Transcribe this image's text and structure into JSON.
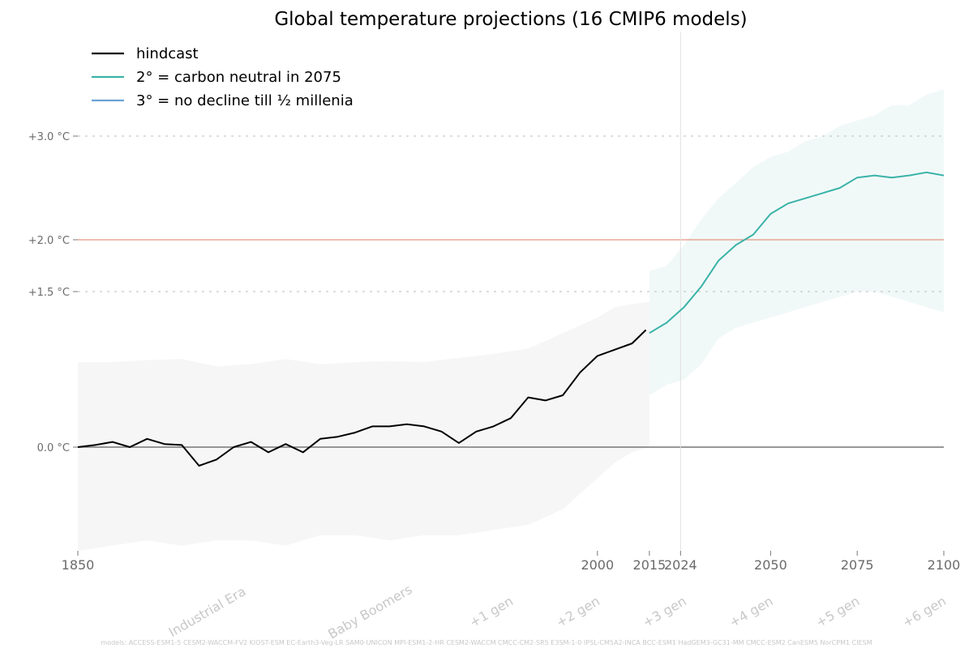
{
  "chart_data": {
    "type": "line",
    "title": "Global temperature projections (16 CMIP6 models)",
    "xlim": [
      1850,
      2100
    ],
    "ylim": [
      -1.0,
      4.0
    ],
    "y_ticks": [
      {
        "value": 0.0,
        "label": "0.0 °C"
      },
      {
        "value": 1.5,
        "label": "+1.5 °C"
      },
      {
        "value": 2.0,
        "label": "+2.0 °C"
      },
      {
        "value": 3.0,
        "label": "+3.0 °C"
      }
    ],
    "x_ticks": [
      {
        "value": 1850,
        "label": "1850"
      },
      {
        "value": 2000,
        "label": "2000"
      },
      {
        "value": 2015,
        "label": "2015"
      },
      {
        "value": 2024,
        "label": "2024"
      },
      {
        "value": 2050,
        "label": "2050"
      },
      {
        "value": 2075,
        "label": "2075"
      },
      {
        "value": 2100,
        "label": "2100"
      }
    ],
    "era_labels": [
      {
        "value": 1888,
        "label": "Industrial Era"
      },
      {
        "value": 1935,
        "label": "Baby Boomers"
      },
      {
        "value": 1970,
        "label": "+1 gen"
      },
      {
        "value": 1995,
        "label": "+2 gen"
      },
      {
        "value": 2020,
        "label": "+3 gen"
      },
      {
        "value": 2045,
        "label": "+4 gen"
      },
      {
        "value": 2070,
        "label": "+5 gen"
      },
      {
        "value": 2095,
        "label": "+6 gen"
      }
    ],
    "reference_lines": [
      {
        "value": 2.0,
        "color": "#e07a60",
        "style": "solid"
      },
      {
        "value": 1.5,
        "color": "#bbbbbb",
        "style": "dotted"
      },
      {
        "value": 3.0,
        "color": "#bbbbbb",
        "style": "dotted"
      },
      {
        "value": 0.0,
        "color": "#777777",
        "style": "solid"
      }
    ],
    "current_year_line": 2024,
    "legend_position": "top-left",
    "series": [
      {
        "name": "hindcast",
        "color": "#000000",
        "x": [
          1850,
          1855,
          1860,
          1865,
          1870,
          1875,
          1880,
          1885,
          1890,
          1895,
          1900,
          1905,
          1910,
          1915,
          1920,
          1925,
          1930,
          1935,
          1940,
          1945,
          1950,
          1955,
          1960,
          1965,
          1970,
          1975,
          1980,
          1985,
          1990,
          1995,
          2000,
          2005,
          2010,
          2014
        ],
        "y": [
          0.0,
          0.02,
          0.05,
          0.0,
          0.08,
          0.03,
          0.02,
          -0.18,
          -0.12,
          0.0,
          0.05,
          -0.05,
          0.03,
          -0.05,
          0.08,
          0.1,
          0.14,
          0.2,
          0.2,
          0.22,
          0.2,
          0.15,
          0.04,
          0.15,
          0.2,
          0.28,
          0.48,
          0.45,
          0.5,
          0.72,
          0.88,
          0.94,
          1.0,
          1.13
        ]
      },
      {
        "name": "2° = carbon neutral in 2075",
        "color": "#3ab3a8",
        "x": [
          2015,
          2020,
          2025,
          2030,
          2035,
          2040,
          2045,
          2050,
          2055,
          2060,
          2065,
          2070,
          2075,
          2080,
          2085,
          2090,
          2095,
          2100
        ],
        "y": [
          1.1,
          1.2,
          1.35,
          1.55,
          1.8,
          1.95,
          2.05,
          2.25,
          2.35,
          2.4,
          2.45,
          2.5,
          2.6,
          2.62,
          2.6,
          2.62,
          2.65,
          2.62
        ]
      },
      {
        "name": "3° = no decline till ½ millenia",
        "color": "#6aa3d5",
        "x": [],
        "y": []
      }
    ],
    "bands": [
      {
        "for_series": "hindcast",
        "color": "#e6e6e6",
        "x": [
          1850,
          1860,
          1870,
          1880,
          1890,
          1900,
          1910,
          1920,
          1930,
          1940,
          1950,
          1960,
          1970,
          1980,
          1990,
          2000,
          2005,
          2010,
          2015
        ],
        "low": [
          -1.0,
          -0.95,
          -0.9,
          -0.95,
          -0.9,
          -0.9,
          -0.95,
          -0.85,
          -0.85,
          -0.9,
          -0.85,
          -0.85,
          -0.8,
          -0.75,
          -0.6,
          -0.3,
          -0.15,
          -0.05,
          0.0
        ],
        "high": [
          0.82,
          0.82,
          0.84,
          0.85,
          0.78,
          0.8,
          0.85,
          0.8,
          0.82,
          0.83,
          0.82,
          0.86,
          0.9,
          0.95,
          1.1,
          1.25,
          1.35,
          1.38,
          1.4
        ]
      },
      {
        "for_series": "2° = carbon neutral in 2075",
        "color": "#d7efec",
        "x": [
          2015,
          2020,
          2025,
          2030,
          2035,
          2040,
          2045,
          2050,
          2055,
          2060,
          2065,
          2070,
          2075,
          2080,
          2085,
          2090,
          2095,
          2100
        ],
        "low": [
          0.5,
          0.6,
          0.65,
          0.8,
          1.05,
          1.15,
          1.2,
          1.25,
          1.3,
          1.35,
          1.4,
          1.45,
          1.5,
          1.5,
          1.45,
          1.4,
          1.35,
          1.3
        ],
        "high": [
          1.7,
          1.75,
          1.95,
          2.2,
          2.4,
          2.55,
          2.7,
          2.8,
          2.85,
          2.95,
          3.0,
          3.1,
          3.15,
          3.2,
          3.3,
          3.3,
          3.4,
          3.45
        ]
      }
    ],
    "footer": "models: ACCESS-ESM1-5 CESM2-WACCM-FV2 KIOST-ESM EC-Earth3-Veg-LR SAM0-UNICON MPI-ESM1-2-HR CESM2-WACCM CMCC-CM2-SR5 E3SM-1-0 IPSL-CM5A2-INCA BCC-ESM1 HadGEM3-GC31-MM CMCC-ESM2 CanESM5 NorCPM1 CIESM"
  }
}
